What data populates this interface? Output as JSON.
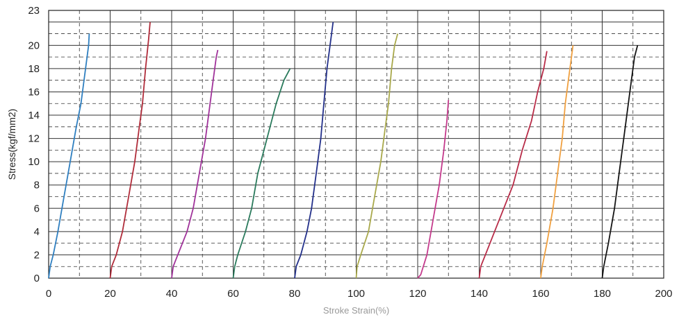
{
  "chart_data": {
    "type": "line",
    "title": "",
    "xlabel": "Stroke Strain(%)",
    "ylabel": "Stress(kgf/mm2)",
    "xlim": [
      0,
      200
    ],
    "ylim": [
      0,
      23
    ],
    "xticks": [
      0,
      20,
      40,
      60,
      80,
      100,
      120,
      140,
      160,
      180,
      200
    ],
    "yticks": [
      0,
      2,
      4,
      6,
      8,
      10,
      12,
      14,
      16,
      18,
      20,
      23
    ],
    "grid": true,
    "legend": "none",
    "series": [
      {
        "color": "#2f7fc0",
        "points": [
          [
            0,
            0
          ],
          [
            0.5,
            1
          ],
          [
            1.5,
            2
          ],
          [
            3,
            4
          ],
          [
            5,
            7
          ],
          [
            7,
            10
          ],
          [
            9,
            13
          ],
          [
            10.5,
            15
          ],
          [
            12,
            18
          ],
          [
            13,
            20
          ],
          [
            13.2,
            21
          ]
        ]
      },
      {
        "color": "#b02c3a",
        "points": [
          [
            20,
            0
          ],
          [
            20.5,
            1
          ],
          [
            22,
            2
          ],
          [
            24,
            4
          ],
          [
            26,
            7
          ],
          [
            28,
            10
          ],
          [
            29.5,
            13
          ],
          [
            30.5,
            15
          ],
          [
            31.5,
            18
          ],
          [
            32.5,
            20.5
          ],
          [
            33,
            22
          ]
        ]
      },
      {
        "color": "#a0329a",
        "points": [
          [
            40,
            0
          ],
          [
            40.5,
            1
          ],
          [
            42,
            2
          ],
          [
            45,
            4
          ],
          [
            47,
            6
          ],
          [
            49,
            9
          ],
          [
            51,
            12
          ],
          [
            52,
            14
          ],
          [
            53.5,
            17
          ],
          [
            54.5,
            19
          ],
          [
            55,
            19.6
          ]
        ]
      },
      {
        "color": "#2a7a5c",
        "points": [
          [
            60,
            0
          ],
          [
            60.5,
            1
          ],
          [
            61.5,
            2
          ],
          [
            64,
            4
          ],
          [
            66,
            6
          ],
          [
            68,
            9
          ],
          [
            70,
            11
          ],
          [
            72,
            13
          ],
          [
            74,
            15
          ],
          [
            76.5,
            17
          ],
          [
            78.5,
            18
          ]
        ]
      },
      {
        "color": "#23308a",
        "points": [
          [
            80,
            0
          ],
          [
            80.5,
            1
          ],
          [
            82,
            2
          ],
          [
            84,
            4
          ],
          [
            85.5,
            6
          ],
          [
            87,
            9
          ],
          [
            88.5,
            12
          ],
          [
            89.5,
            15
          ],
          [
            90.5,
            18
          ],
          [
            92,
            21
          ],
          [
            92.5,
            22
          ]
        ]
      },
      {
        "color": "#a8a84a",
        "points": [
          [
            100,
            0
          ],
          [
            100.3,
            1
          ],
          [
            101.5,
            2
          ],
          [
            104,
            4
          ],
          [
            106,
            7
          ],
          [
            108,
            10
          ],
          [
            109.5,
            13
          ],
          [
            110.5,
            15
          ],
          [
            111.5,
            18
          ],
          [
            112.5,
            20
          ],
          [
            113.5,
            21
          ]
        ]
      },
      {
        "color": "#c43a8c",
        "points": [
          [
            120,
            0
          ],
          [
            121,
            0.3
          ],
          [
            123,
            2
          ],
          [
            125,
            5
          ],
          [
            127,
            8
          ],
          [
            128.5,
            11
          ],
          [
            129.5,
            13.5
          ],
          [
            130,
            15.3
          ]
        ]
      },
      {
        "color": "#b82c48",
        "points": [
          [
            140,
            0
          ],
          [
            140.5,
            1
          ],
          [
            142,
            2
          ],
          [
            145,
            4
          ],
          [
            148,
            6
          ],
          [
            151,
            8
          ],
          [
            154,
            11
          ],
          [
            157,
            13.5
          ],
          [
            159,
            16
          ],
          [
            161,
            18
          ],
          [
            162,
            19.5
          ]
        ]
      },
      {
        "color": "#f0a040",
        "points": [
          [
            160,
            0
          ],
          [
            160.5,
            1
          ],
          [
            162,
            3
          ],
          [
            164,
            6
          ],
          [
            165.5,
            9
          ],
          [
            167,
            12
          ],
          [
            168,
            15
          ],
          [
            169,
            17
          ],
          [
            170,
            19
          ],
          [
            170.5,
            20
          ]
        ]
      },
      {
        "color": "#151515",
        "points": [
          [
            180,
            0
          ],
          [
            180.5,
            1
          ],
          [
            182,
            3
          ],
          [
            184,
            6
          ],
          [
            185.5,
            9
          ],
          [
            187,
            12
          ],
          [
            188.5,
            15
          ],
          [
            189.5,
            17
          ],
          [
            190.5,
            19
          ],
          [
            191.5,
            20
          ]
        ]
      }
    ]
  }
}
